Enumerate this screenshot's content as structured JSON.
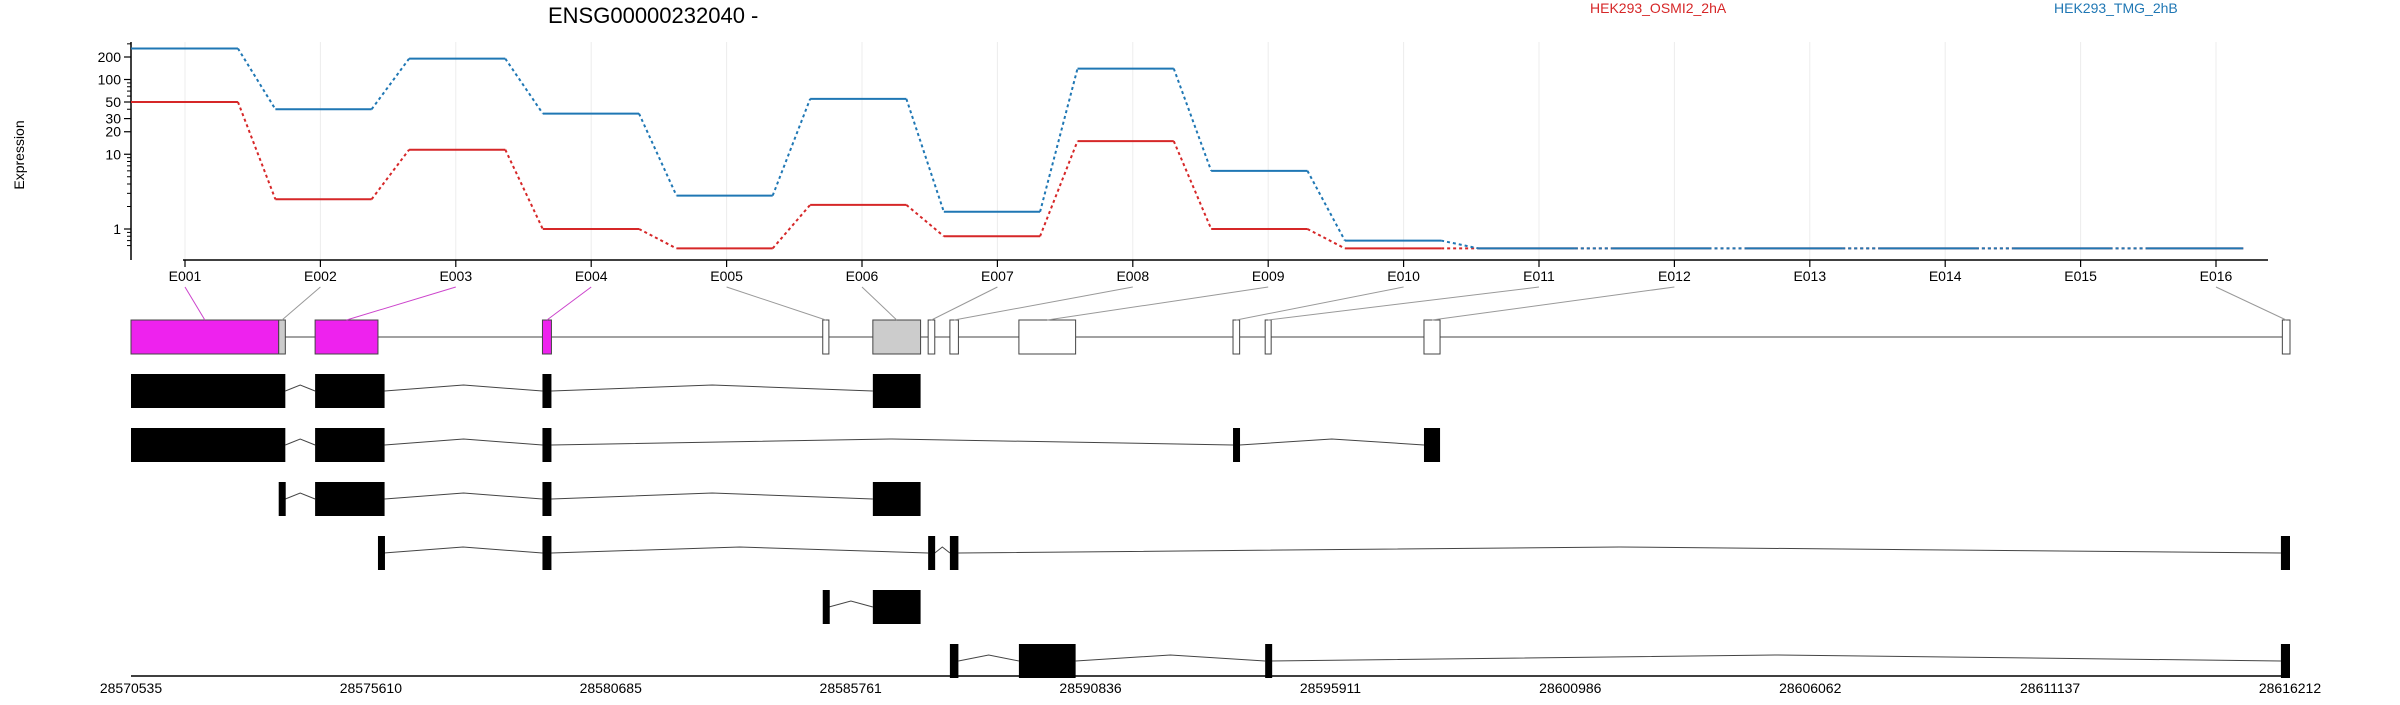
{
  "chart_data": {
    "type": "line",
    "title": "ENSG00000232040 -",
    "ylabel": "Expression",
    "yscale": "log",
    "yticks": [
      "1",
      "10",
      "20",
      "30",
      "50",
      "100",
      "200"
    ],
    "grid": "vertical",
    "legend_position": "top-right",
    "categories": [
      "E001",
      "E002",
      "E003",
      "E004",
      "E005",
      "E006",
      "E007",
      "E008",
      "E009",
      "E010",
      "E011",
      "E012",
      "E013",
      "E014",
      "E015",
      "E016"
    ],
    "series": [
      {
        "name": "HEK293_OSMI2_2hA",
        "color": "#d62728",
        "values": [
          50,
          2.5,
          11.5,
          1,
          0.55,
          2.1,
          0.8,
          15,
          1,
          0.55,
          0.55,
          0.55,
          0.55,
          0.55,
          0.55,
          0.55
        ]
      },
      {
        "name": "HEK293_TMG_2hB",
        "color": "#1f77b4",
        "values": [
          260,
          40,
          190,
          35,
          2.8,
          55,
          1.7,
          140,
          6,
          0.7,
          0.55,
          0.55,
          0.55,
          0.55,
          0.55,
          0.55
        ]
      }
    ],
    "exon_colors": {
      "E001": "#ee22ee",
      "E002": "#cccccc",
      "E003": "#ee22ee",
      "E004": "#ee22ee",
      "E005": "#ffffff",
      "E006": "#cccccc",
      "E007": "#ffffff",
      "E008": "#ffffff",
      "E009": "#ffffff",
      "E010": "#ffffff",
      "E011": "#ffffff",
      "E012": "#ffffff",
      "E013": "#ffffff",
      "E014": "#ffffff",
      "E015": "#ffffff",
      "E016": "#ffffff"
    },
    "gene_model": {
      "genome_start": 28570535,
      "genome_end": 28616212,
      "exons": [
        {
          "id": "E001",
          "start": 28570535,
          "end": 28573660
        },
        {
          "id": "E002",
          "start": 28573660,
          "end": 28573800
        },
        {
          "id": "E003",
          "start": 28574430,
          "end": 28575760
        },
        {
          "id": "E004",
          "start": 28579240,
          "end": 28579430
        },
        {
          "id": "E005",
          "start": 28585170,
          "end": 28585300
        },
        {
          "id": "E006",
          "start": 28586230,
          "end": 28587240
        },
        {
          "id": "E007",
          "start": 28587400,
          "end": 28587540
        },
        {
          "id": "E008",
          "start": 28587860,
          "end": 28588040
        },
        {
          "id": "E009",
          "start": 28589320,
          "end": 28590520
        },
        {
          "id": "E010",
          "start": 28593850,
          "end": 28593990
        },
        {
          "id": "E011",
          "start": 28594530,
          "end": 28594620
        },
        {
          "id": "E012",
          "start": 28597890,
          "end": 28598230
        },
        {
          "id": "E016",
          "start": 28616050,
          "end": 28616212
        }
      ],
      "transcripts": [
        [
          [
            28570535,
            28573800
          ],
          [
            28574430,
            28575900
          ],
          [
            28579240,
            28579430
          ],
          [
            28586230,
            28587240
          ]
        ],
        [
          [
            28570535,
            28573800
          ],
          [
            28574430,
            28575900
          ],
          [
            28579240,
            28579430
          ],
          [
            28593850,
            28593990
          ],
          [
            28597890,
            28598230
          ]
        ],
        [
          [
            28573660,
            28573800
          ],
          [
            28574430,
            28575900
          ],
          [
            28579240,
            28579430
          ],
          [
            28586230,
            28587240
          ]
        ],
        [
          [
            28575760,
            28575880
          ],
          [
            28579240,
            28579430
          ],
          [
            28587400,
            28587540
          ],
          [
            28587860,
            28588040
          ],
          [
            28616020,
            28616212
          ]
        ],
        [
          [
            28585170,
            28585300
          ],
          [
            28586230,
            28587240
          ]
        ],
        [
          [
            28587860,
            28588040
          ],
          [
            28589320,
            28590520
          ],
          [
            28594530,
            28594620
          ],
          [
            28616020,
            28616212
          ]
        ]
      ]
    },
    "genome_ticks": [
      "28570535",
      "28575610",
      "28580685",
      "28585761",
      "28590836",
      "28595911",
      "28600986",
      "28606062",
      "28611137",
      "28616212"
    ]
  }
}
